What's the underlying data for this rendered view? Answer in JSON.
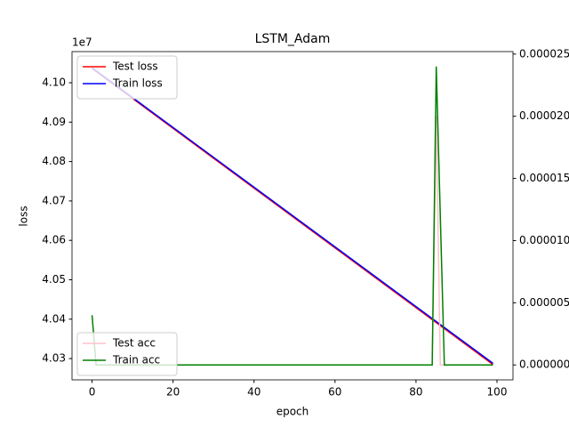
{
  "chart_data": {
    "type": "line",
    "title": "LSTM_Adam",
    "xlabel": "epoch",
    "ylabel": "loss",
    "y_offset": "1e7",
    "xlim": [
      -4.95,
      103.95
    ],
    "xticks": [
      0,
      20,
      40,
      60,
      80,
      100
    ],
    "ylim": [
      40246000,
      41079000
    ],
    "yticks": [
      {
        "value": 40300000,
        "label": "4.03"
      },
      {
        "value": 40400000,
        "label": "4.04"
      },
      {
        "value": 40500000,
        "label": "4.05"
      },
      {
        "value": 40600000,
        "label": "4.06"
      },
      {
        "value": 40700000,
        "label": "4.07"
      },
      {
        "value": 40800000,
        "label": "4.08"
      },
      {
        "value": 40900000,
        "label": "4.09"
      },
      {
        "value": 41000000,
        "label": "4.10"
      }
    ],
    "y2lim": [
      -1.2e-06,
      2.52e-05
    ],
    "y2ticks": [
      {
        "value": 0,
        "label": "0.000000"
      },
      {
        "value": 5e-06,
        "label": "0.000005"
      },
      {
        "value": 1e-05,
        "label": "0.000010"
      },
      {
        "value": 1.5e-05,
        "label": "0.000015"
      },
      {
        "value": 2e-05,
        "label": "0.000020"
      },
      {
        "value": 2.5e-05,
        "label": "0.000025"
      }
    ],
    "legend": "upper left",
    "y2_legend": "lower left",
    "series": [
      {
        "name": "Test loss",
        "color": "#ff0000",
        "x": [
          0,
          99
        ],
        "values": [
          41036000,
          40285000
        ]
      },
      {
        "name": "Train loss",
        "color": "#0000ff",
        "x": [
          0,
          99
        ],
        "values": [
          41038000,
          40288000
        ]
      },
      {
        "name": "Test acc",
        "color": "#ffc0cb",
        "axis": "y2",
        "x": [
          0,
          84,
          85,
          86,
          99
        ],
        "values": [
          0,
          0,
          2e-05,
          0,
          0
        ]
      },
      {
        "name": "Train acc",
        "color": "#008000",
        "axis": "y2",
        "x": [
          0,
          1,
          84,
          85,
          86,
          87,
          99
        ],
        "values": [
          4e-06,
          0,
          0,
          2.4e-05,
          1.2e-05,
          0,
          0
        ]
      }
    ]
  }
}
